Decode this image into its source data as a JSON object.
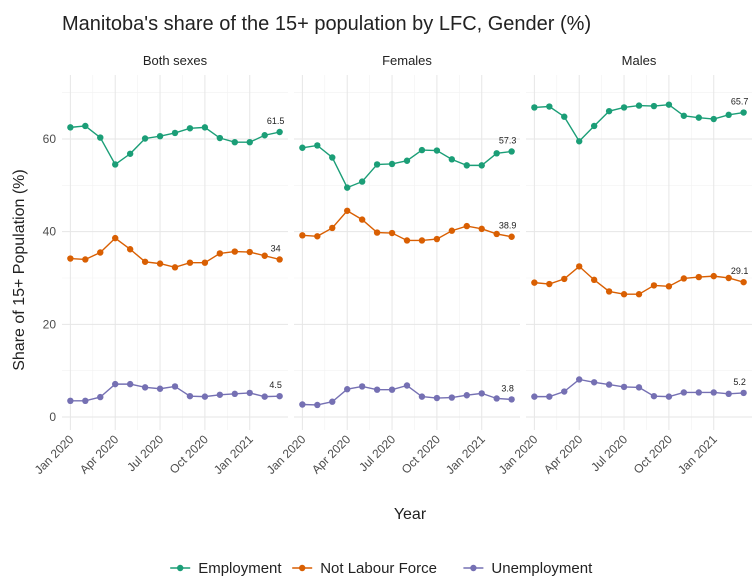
{
  "title": "Manitoba's share of the 15+ population by LFC, Gender (%)",
  "y_label": "Share of 15+ Population (%)",
  "x_label": "Year",
  "chart_data": [
    {
      "type": "line",
      "title": "Both sexes",
      "x": [
        "2020-01",
        "2020-02",
        "2020-03",
        "2020-04",
        "2020-05",
        "2020-06",
        "2020-07",
        "2020-08",
        "2020-09",
        "2020-10",
        "2020-11",
        "2020-12",
        "2021-01",
        "2021-02",
        "2021-03"
      ],
      "series": [
        {
          "name": "Employment",
          "color": "#1b9e77",
          "values": [
            62.5,
            62.8,
            60.3,
            54.5,
            56.8,
            60.1,
            60.6,
            61.3,
            62.3,
            62.5,
            60.2,
            59.3,
            59.3,
            60.8,
            61.5
          ]
        },
        {
          "name": "Not Labour Force",
          "color": "#d95f02",
          "values": [
            34.2,
            34,
            35.5,
            38.6,
            36.2,
            33.5,
            33.1,
            32.3,
            33.3,
            33.3,
            35.3,
            35.7,
            35.6,
            34.8,
            34
          ]
        },
        {
          "name": "Unemployment",
          "color": "#7570b3",
          "values": [
            3.5,
            3.5,
            4.3,
            7.1,
            7.1,
            6.4,
            6.1,
            6.6,
            4.5,
            4.4,
            4.8,
            5,
            5.2,
            4.4,
            4.5
          ]
        }
      ],
      "ylim": [
        -2.8,
        73.8
      ],
      "yticks": [
        0,
        20,
        40,
        60
      ],
      "xticks": [
        {
          "value": "2020-01",
          "label": "Jan 2020"
        },
        {
          "value": "2020-04",
          "label": "Apr 2020"
        },
        {
          "value": "2020-07",
          "label": "Jul 2020"
        },
        {
          "value": "2020-10",
          "label": "Oct 2020"
        },
        {
          "value": "2021-01",
          "label": "Jan 2021"
        }
      ],
      "grid": true
    },
    {
      "type": "line",
      "title": "Females",
      "x": [
        "2020-01",
        "2020-02",
        "2020-03",
        "2020-04",
        "2020-05",
        "2020-06",
        "2020-07",
        "2020-08",
        "2020-09",
        "2020-10",
        "2020-11",
        "2020-12",
        "2021-01",
        "2021-02",
        "2021-03"
      ],
      "series": [
        {
          "name": "Employment",
          "color": "#1b9e77",
          "values": [
            58.1,
            58.6,
            56,
            49.5,
            50.8,
            54.5,
            54.6,
            55.3,
            57.6,
            57.5,
            55.6,
            54.3,
            54.3,
            56.9,
            57.3
          ]
        },
        {
          "name": "Not Labour Force",
          "color": "#d95f02",
          "values": [
            39.2,
            39,
            40.8,
            44.5,
            42.6,
            39.8,
            39.7,
            38.1,
            38.1,
            38.4,
            40.2,
            41.2,
            40.6,
            39.5,
            38.9
          ]
        },
        {
          "name": "Unemployment",
          "color": "#7570b3",
          "values": [
            2.7,
            2.6,
            3.3,
            6,
            6.6,
            5.9,
            5.9,
            6.8,
            4.4,
            4.1,
            4.2,
            4.7,
            5.1,
            4,
            3.8
          ]
        }
      ],
      "ylim": [
        -2.8,
        73.8
      ],
      "yticks": [
        0,
        20,
        40,
        60
      ],
      "xticks": [
        {
          "value": "2020-01",
          "label": "Jan 2020"
        },
        {
          "value": "2020-04",
          "label": "Apr 2020"
        },
        {
          "value": "2020-07",
          "label": "Jul 2020"
        },
        {
          "value": "2020-10",
          "label": "Oct 2020"
        },
        {
          "value": "2021-01",
          "label": "Jan 2021"
        }
      ],
      "grid": true
    },
    {
      "type": "line",
      "title": "Males",
      "x": [
        "2020-01",
        "2020-02",
        "2020-03",
        "2020-04",
        "2020-05",
        "2020-06",
        "2020-07",
        "2020-08",
        "2020-09",
        "2020-10",
        "2020-11",
        "2020-12",
        "2021-01",
        "2021-02",
        "2021-03"
      ],
      "series": [
        {
          "name": "Employment",
          "color": "#1b9e77",
          "values": [
            66.8,
            67,
            64.8,
            59.5,
            62.8,
            66,
            66.8,
            67.2,
            67.1,
            67.4,
            65,
            64.6,
            64.3,
            65.2,
            65.7
          ]
        },
        {
          "name": "Not Labour Force",
          "color": "#d95f02",
          "values": [
            29,
            28.7,
            29.8,
            32.5,
            29.6,
            27.1,
            26.5,
            26.5,
            28.4,
            28.2,
            29.9,
            30.2,
            30.4,
            30,
            29.1
          ]
        },
        {
          "name": "Unemployment",
          "color": "#7570b3",
          "values": [
            4.4,
            4.4,
            5.5,
            8.1,
            7.5,
            7,
            6.5,
            6.4,
            4.5,
            4.4,
            5.3,
            5.3,
            5.3,
            5,
            5.2
          ]
        }
      ],
      "ylim": [
        -2.8,
        73.8
      ],
      "yticks": [
        0,
        20,
        40,
        60
      ],
      "xticks": [
        {
          "value": "2020-01",
          "label": "Jan 2020"
        },
        {
          "value": "2020-04",
          "label": "Apr 2020"
        },
        {
          "value": "2020-07",
          "label": "Jul 2020"
        },
        {
          "value": "2020-10",
          "label": "Oct 2020"
        },
        {
          "value": "2021-01",
          "label": "Jan 2021"
        }
      ],
      "grid": true
    }
  ]
}
